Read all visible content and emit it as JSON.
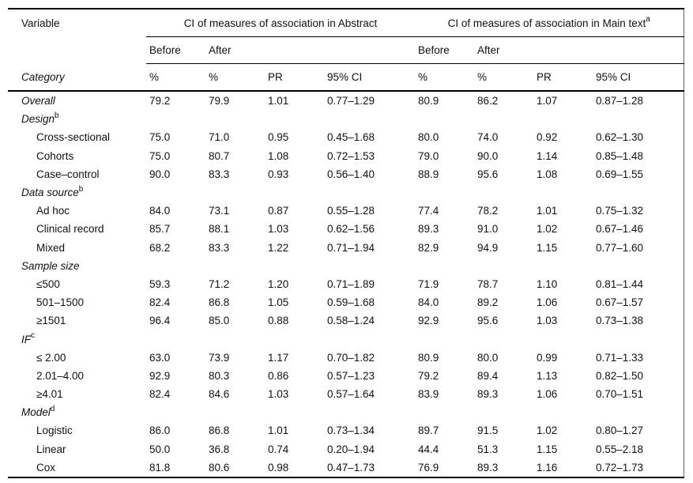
{
  "table": {
    "headers": {
      "variable": "Variable",
      "category": "Category",
      "abstract_group": "CI of measures of association in Abstract",
      "maintext_group": "CI of measures of association in Main text",
      "maintext_sup": "a",
      "before": "Before",
      "after": "After",
      "pct": "%",
      "pr": "PR",
      "ci95": "95% CI"
    },
    "rows": [
      {
        "type": "summary",
        "label": "Overall",
        "values": [
          "79.2",
          "79.9",
          "1.01",
          "0.77–1.29",
          "80.9",
          "86.2",
          "1.07",
          "0.87–1.28"
        ]
      },
      {
        "type": "section",
        "label": "Design",
        "sup": "b",
        "values": []
      },
      {
        "type": "item",
        "label": "Cross-sectional",
        "values": [
          "75.0",
          "71.0",
          "0.95",
          "0.45–1.68",
          "80.0",
          "74.0",
          "0.92",
          "0.62–1.30"
        ]
      },
      {
        "type": "item",
        "label": "Cohorts",
        "values": [
          "75.0",
          "80.7",
          "1.08",
          "0.72–1.53",
          "79.0",
          "90.0",
          "1.14",
          "0.85–1.48"
        ]
      },
      {
        "type": "item",
        "label": "Case–control",
        "values": [
          "90.0",
          "83.3",
          "0.93",
          "0.56–1.40",
          "88.9",
          "95.6",
          "1.08",
          "0.69–1.55"
        ]
      },
      {
        "type": "section",
        "label": "Data source",
        "sup": "b",
        "values": []
      },
      {
        "type": "item",
        "label": "Ad hoc",
        "values": [
          "84.0",
          "73.1",
          "0.87",
          "0.55–1.28",
          "77.4",
          "78.2",
          "1.01",
          "0.75–1.32"
        ]
      },
      {
        "type": "item",
        "label": "Clinical record",
        "values": [
          "85.7",
          "88.1",
          "1.03",
          "0.62–1.56",
          "89.3",
          "91.0",
          "1.02",
          "0.67–1.46"
        ]
      },
      {
        "type": "item",
        "label": "Mixed",
        "values": [
          "68.2",
          "83.3",
          "1.22",
          "0.71–1.94",
          "82.9",
          "94.9",
          "1.15",
          "0.77–1.60"
        ]
      },
      {
        "type": "section",
        "label": "Sample size",
        "values": []
      },
      {
        "type": "item",
        "label": "≤500",
        "values": [
          "59.3",
          "71.2",
          "1.20",
          "0.71–1.89",
          "71.9",
          "78.7",
          "1.10",
          "0.81–1.44"
        ]
      },
      {
        "type": "item",
        "label": "501–1500",
        "values": [
          "82.4",
          "86.8",
          "1.05",
          "0.59–1.68",
          "84.0",
          "89.2",
          "1.06",
          "0.67–1.57"
        ]
      },
      {
        "type": "item",
        "label": "≥1501",
        "values": [
          "96.4",
          "85.0",
          "0.88",
          "0.58–1.24",
          "92.9",
          "95.6",
          "1.03",
          "0.73–1.38"
        ]
      },
      {
        "type": "section",
        "label": "IF",
        "sup": "c",
        "values": []
      },
      {
        "type": "item",
        "label": "≤ 2.00",
        "values": [
          "63.0",
          "73.9",
          "1.17",
          "0.70–1.82",
          "80.9",
          "80.0",
          "0.99",
          "0.71–1.33"
        ]
      },
      {
        "type": "item",
        "label": "2.01–4.00",
        "values": [
          "92.9",
          "80.3",
          "0.86",
          "0.57–1.23",
          "79.2",
          "89.4",
          "1.13",
          "0.82–1.50"
        ]
      },
      {
        "type": "item",
        "label": "≥4.01",
        "values": [
          "82.4",
          "84.6",
          "1.03",
          "0.57–1.64",
          "83.9",
          "89.3",
          "1.06",
          "0.70–1.51"
        ]
      },
      {
        "type": "section",
        "label": "Model",
        "sup": "d",
        "values": []
      },
      {
        "type": "item",
        "label": "Logistic",
        "values": [
          "86.0",
          "86.8",
          "1.01",
          "0.73–1.34",
          "89.7",
          "91.5",
          "1.02",
          "0.80–1.27"
        ]
      },
      {
        "type": "item",
        "label": "Linear",
        "values": [
          "50.0",
          "36.8",
          "0.74",
          "0.20–1.94",
          "44.4",
          "51.3",
          "1.15",
          "0.55–2.18"
        ]
      },
      {
        "type": "item",
        "label": "Cox",
        "values": [
          "81.8",
          "80.6",
          "0.98",
          "0.47–1.73",
          "76.9",
          "89.3",
          "1.16",
          "0.72–1.73"
        ]
      }
    ]
  }
}
